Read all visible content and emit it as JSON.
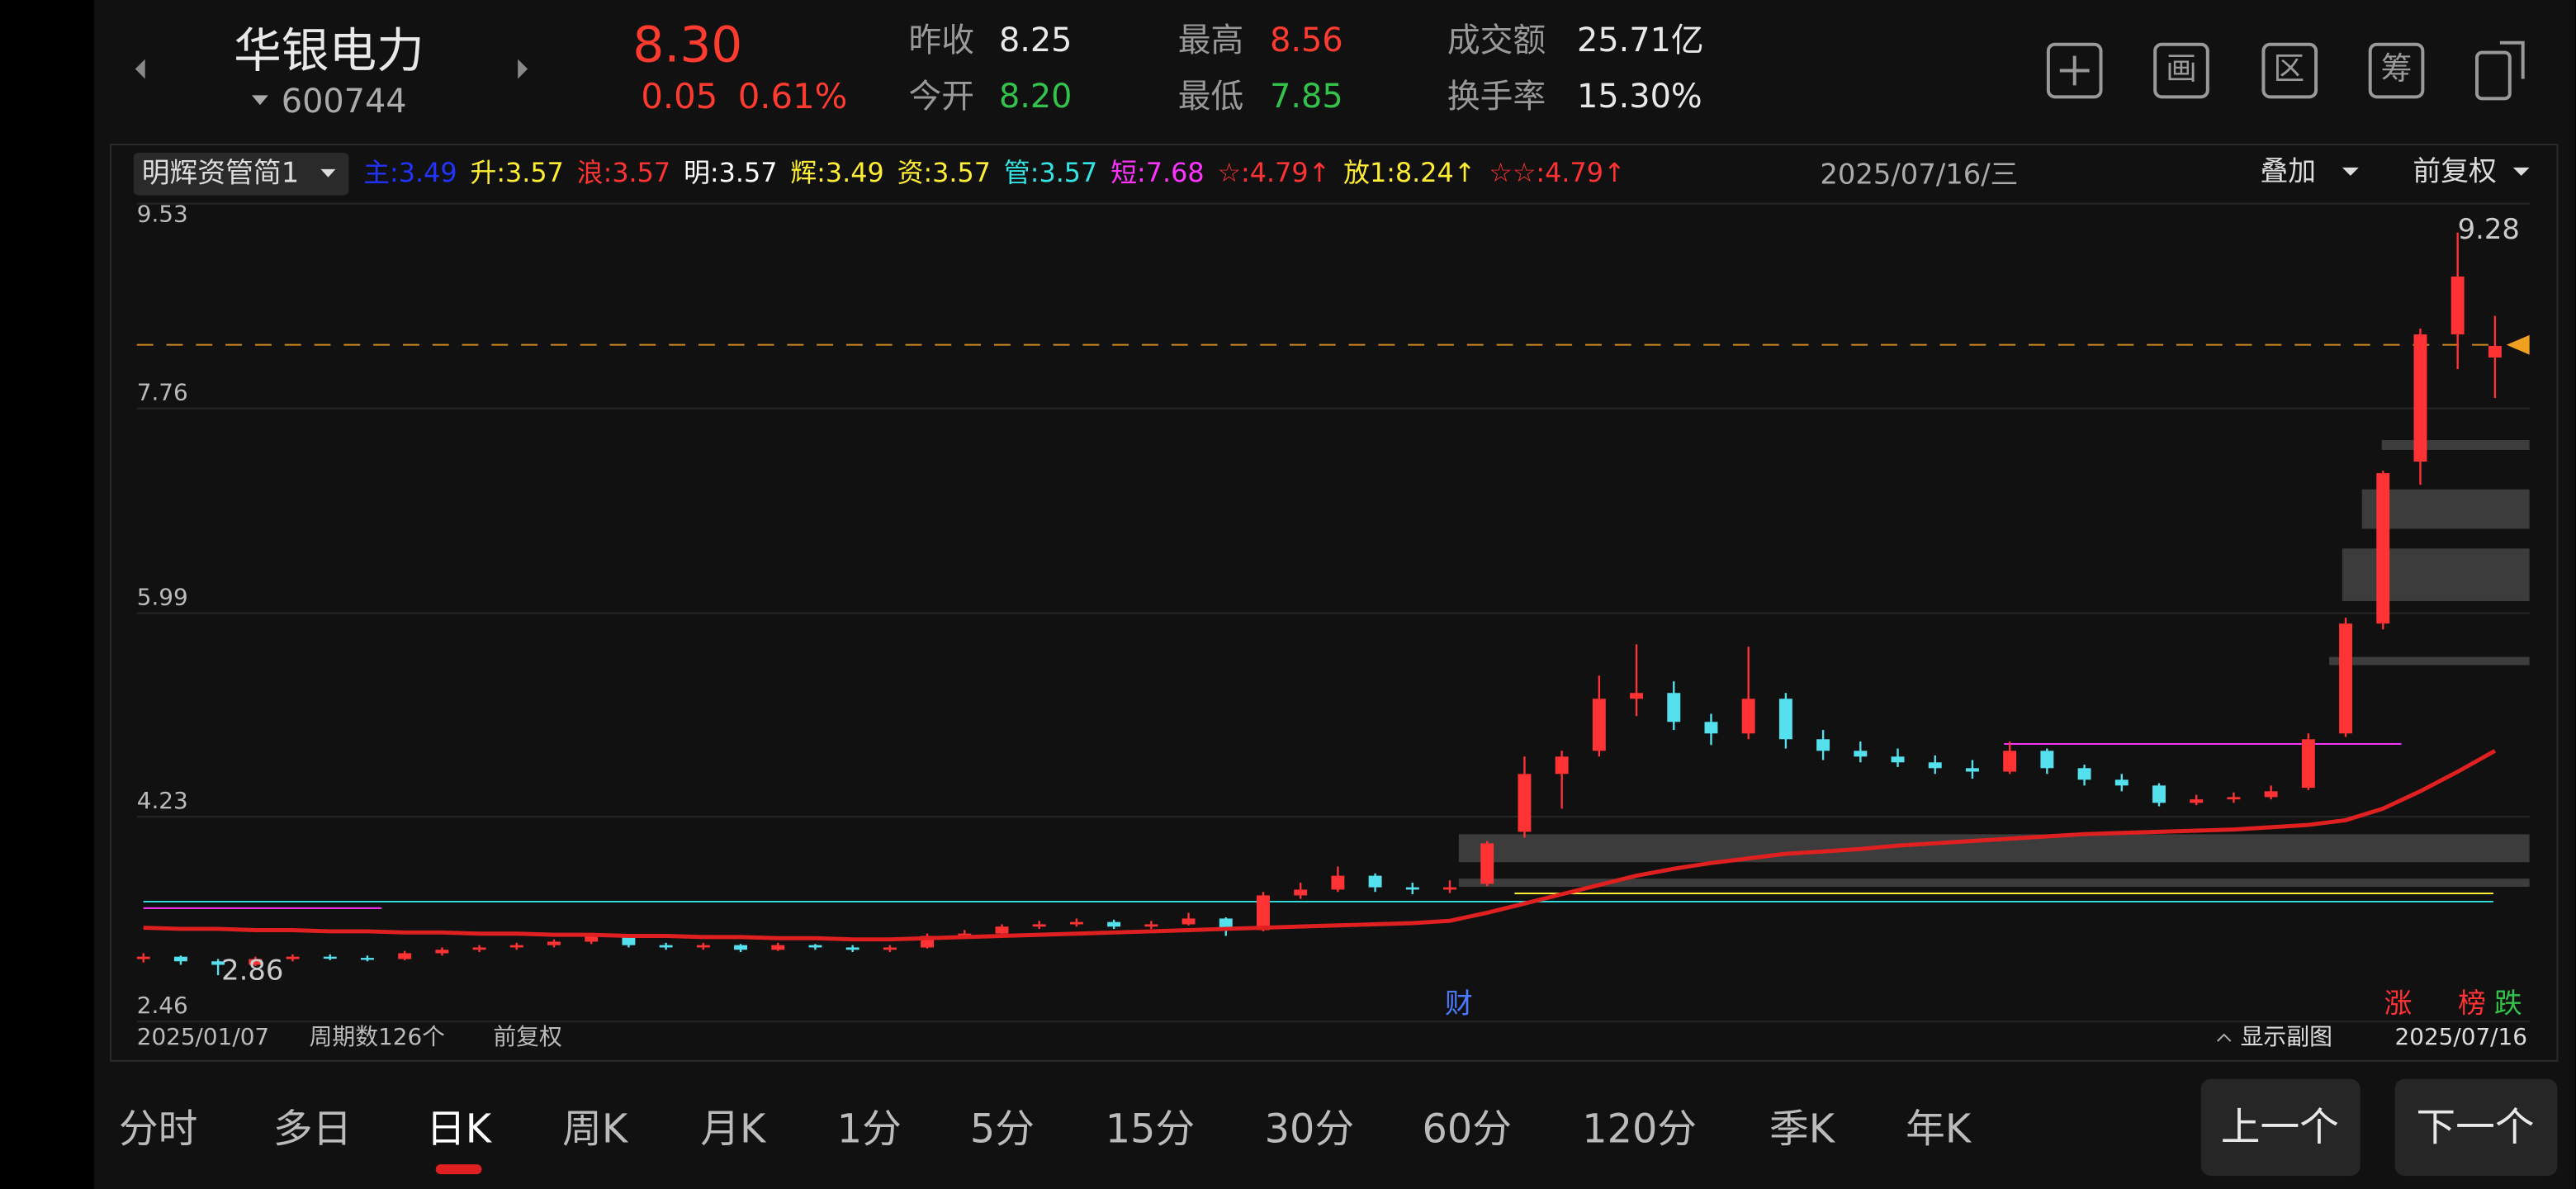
{
  "header": {
    "name": "华银电力",
    "code": "600744",
    "price": "8.30",
    "change": "0.05",
    "change_pct": "0.61%",
    "stats": [
      {
        "label": "昨收",
        "value": "8.25"
      },
      {
        "label": "今开",
        "value": "8.20"
      },
      {
        "label": "最高",
        "value": "8.56"
      },
      {
        "label": "最低",
        "value": "7.85"
      },
      {
        "label": "成交额",
        "value": "25.71亿"
      },
      {
        "label": "换手率",
        "value": "15.30%"
      }
    ],
    "toolbar": [
      "画",
      "区",
      "筹"
    ]
  },
  "indicator": {
    "selector": "明辉资管简1",
    "items": [
      {
        "label": "主:",
        "value": "3.49",
        "color": "#2233ff"
      },
      {
        "label": "升:",
        "value": "3.57",
        "color": "#ffee33"
      },
      {
        "label": "浪:",
        "value": "3.57",
        "color": "#ff3333"
      },
      {
        "label": "明:",
        "value": "3.57",
        "color": "#ffffff"
      },
      {
        "label": "辉:",
        "value": "3.49",
        "color": "#ffee33"
      },
      {
        "label": "资:",
        "value": "3.57",
        "color": "#ffee33"
      },
      {
        "label": "管:",
        "value": "3.57",
        "color": "#33e5e5"
      },
      {
        "label": "短:",
        "value": "7.68",
        "color": "#ff33ff"
      },
      {
        "label": "☆:",
        "value": "4.79↑",
        "color": "#ff3333"
      },
      {
        "label": "放1:",
        "value": "8.24↑",
        "color": "#ffee33"
      },
      {
        "label": "☆☆:",
        "value": "4.79↑",
        "color": "#ff3333"
      }
    ],
    "date": "2025/07/16/三",
    "overlay": "叠加",
    "adjust": "前复权"
  },
  "chart_data": {
    "type": "candlestick",
    "ylim": [
      2.46,
      9.53
    ],
    "yticks": [
      9.53,
      7.76,
      5.99,
      4.23,
      2.46
    ],
    "grid": true,
    "up_color": "#ff3333",
    "down_color": "#55e0ee",
    "candles": [
      [
        3.0,
        3.05,
        2.97,
        3.02
      ],
      [
        3.02,
        3.03,
        2.95,
        2.98
      ],
      [
        2.98,
        3.0,
        2.86,
        2.95
      ],
      [
        2.95,
        3.02,
        2.94,
        3.0
      ],
      [
        3.0,
        3.04,
        2.98,
        3.02
      ],
      [
        3.02,
        3.04,
        2.99,
        3.01
      ],
      [
        3.01,
        3.03,
        2.98,
        3.0
      ],
      [
        3.0,
        3.07,
        2.99,
        3.05
      ],
      [
        3.05,
        3.1,
        3.03,
        3.08
      ],
      [
        3.08,
        3.12,
        3.06,
        3.1
      ],
      [
        3.1,
        3.14,
        3.08,
        3.12
      ],
      [
        3.12,
        3.17,
        3.1,
        3.15
      ],
      [
        3.15,
        3.22,
        3.13,
        3.2
      ],
      [
        3.2,
        3.21,
        3.1,
        3.12
      ],
      [
        3.12,
        3.14,
        3.08,
        3.1
      ],
      [
        3.1,
        3.14,
        3.08,
        3.12
      ],
      [
        3.12,
        3.13,
        3.06,
        3.08
      ],
      [
        3.08,
        3.14,
        3.07,
        3.12
      ],
      [
        3.12,
        3.13,
        3.08,
        3.1
      ],
      [
        3.1,
        3.12,
        3.06,
        3.08
      ],
      [
        3.08,
        3.12,
        3.06,
        3.1
      ],
      [
        3.1,
        3.22,
        3.09,
        3.2
      ],
      [
        3.2,
        3.25,
        3.18,
        3.22
      ],
      [
        3.22,
        3.3,
        3.2,
        3.28
      ],
      [
        3.28,
        3.33,
        3.26,
        3.3
      ],
      [
        3.3,
        3.35,
        3.28,
        3.32
      ],
      [
        3.32,
        3.34,
        3.26,
        3.28
      ],
      [
        3.28,
        3.33,
        3.26,
        3.3
      ],
      [
        3.3,
        3.4,
        3.29,
        3.35
      ],
      [
        3.35,
        3.36,
        3.2,
        3.25
      ],
      [
        3.25,
        3.58,
        3.24,
        3.55
      ],
      [
        3.55,
        3.66,
        3.52,
        3.6
      ],
      [
        3.6,
        3.8,
        3.58,
        3.72
      ],
      [
        3.72,
        3.74,
        3.58,
        3.62
      ],
      [
        3.62,
        3.66,
        3.56,
        3.6
      ],
      [
        3.6,
        3.68,
        3.57,
        3.62
      ],
      [
        3.65,
        4.02,
        3.63,
        4.0
      ],
      [
        4.1,
        4.75,
        4.05,
        4.6
      ],
      [
        4.6,
        4.8,
        4.3,
        4.75
      ],
      [
        4.8,
        5.45,
        4.75,
        5.25
      ],
      [
        5.25,
        5.72,
        5.1,
        5.3
      ],
      [
        5.3,
        5.4,
        4.98,
        5.05
      ],
      [
        5.05,
        5.12,
        4.85,
        4.95
      ],
      [
        4.95,
        5.7,
        4.9,
        5.25
      ],
      [
        5.25,
        5.3,
        4.82,
        4.9
      ],
      [
        4.9,
        4.98,
        4.72,
        4.8
      ],
      [
        4.8,
        4.88,
        4.7,
        4.75
      ],
      [
        4.75,
        4.82,
        4.66,
        4.7
      ],
      [
        4.7,
        4.76,
        4.6,
        4.65
      ],
      [
        4.65,
        4.72,
        4.56,
        4.62
      ],
      [
        4.62,
        4.88,
        4.6,
        4.8
      ],
      [
        4.8,
        4.82,
        4.6,
        4.65
      ],
      [
        4.65,
        4.68,
        4.5,
        4.55
      ],
      [
        4.55,
        4.6,
        4.45,
        4.5
      ],
      [
        4.5,
        4.52,
        4.32,
        4.35
      ],
      [
        4.35,
        4.42,
        4.33,
        4.38
      ],
      [
        4.38,
        4.44,
        4.35,
        4.4
      ],
      [
        4.4,
        4.5,
        4.38,
        4.45
      ],
      [
        4.48,
        4.95,
        4.46,
        4.9
      ],
      [
        4.95,
        5.95,
        4.92,
        5.9
      ],
      [
        5.9,
        7.22,
        5.85,
        7.2
      ],
      [
        7.3,
        8.45,
        7.1,
        8.4
      ],
      [
        8.4,
        9.28,
        8.1,
        8.9
      ],
      [
        8.2,
        8.56,
        7.85,
        8.3
      ]
    ],
    "ma_color": "#e02020",
    "ma": [
      3.27,
      3.26,
      3.26,
      3.25,
      3.25,
      3.24,
      3.24,
      3.23,
      3.23,
      3.22,
      3.22,
      3.21,
      3.21,
      3.2,
      3.2,
      3.19,
      3.19,
      3.18,
      3.18,
      3.17,
      3.17,
      3.18,
      3.19,
      3.2,
      3.21,
      3.22,
      3.23,
      3.24,
      3.25,
      3.26,
      3.27,
      3.28,
      3.29,
      3.3,
      3.31,
      3.33,
      3.4,
      3.48,
      3.56,
      3.64,
      3.72,
      3.78,
      3.83,
      3.87,
      3.91,
      3.93,
      3.95,
      3.98,
      4.0,
      4.02,
      4.04,
      4.06,
      4.08,
      4.09,
      4.1,
      4.11,
      4.12,
      4.14,
      4.16,
      4.2,
      4.3,
      4.45,
      4.62,
      4.8
    ],
    "annotations": [
      {
        "label": "9.28",
        "value": 9.28,
        "index": 62
      },
      {
        "label": "2.86",
        "value": 2.86,
        "index": 2
      }
    ]
  },
  "footer": {
    "start_date": "2025/01/07",
    "period": "周期数126个",
    "adjust": "前复权",
    "subchart": "显示副图",
    "end_date": "2025/07/16",
    "badges": [
      "财",
      "涨",
      "榜",
      "跌"
    ]
  },
  "tabs": {
    "items": [
      "分时",
      "多日",
      "日K",
      "周K",
      "月K",
      "1分",
      "5分",
      "15分",
      "30分",
      "60分",
      "120分",
      "季K",
      "年K"
    ],
    "active": 2
  },
  "buttons": [
    "上一个",
    "下一个"
  ]
}
